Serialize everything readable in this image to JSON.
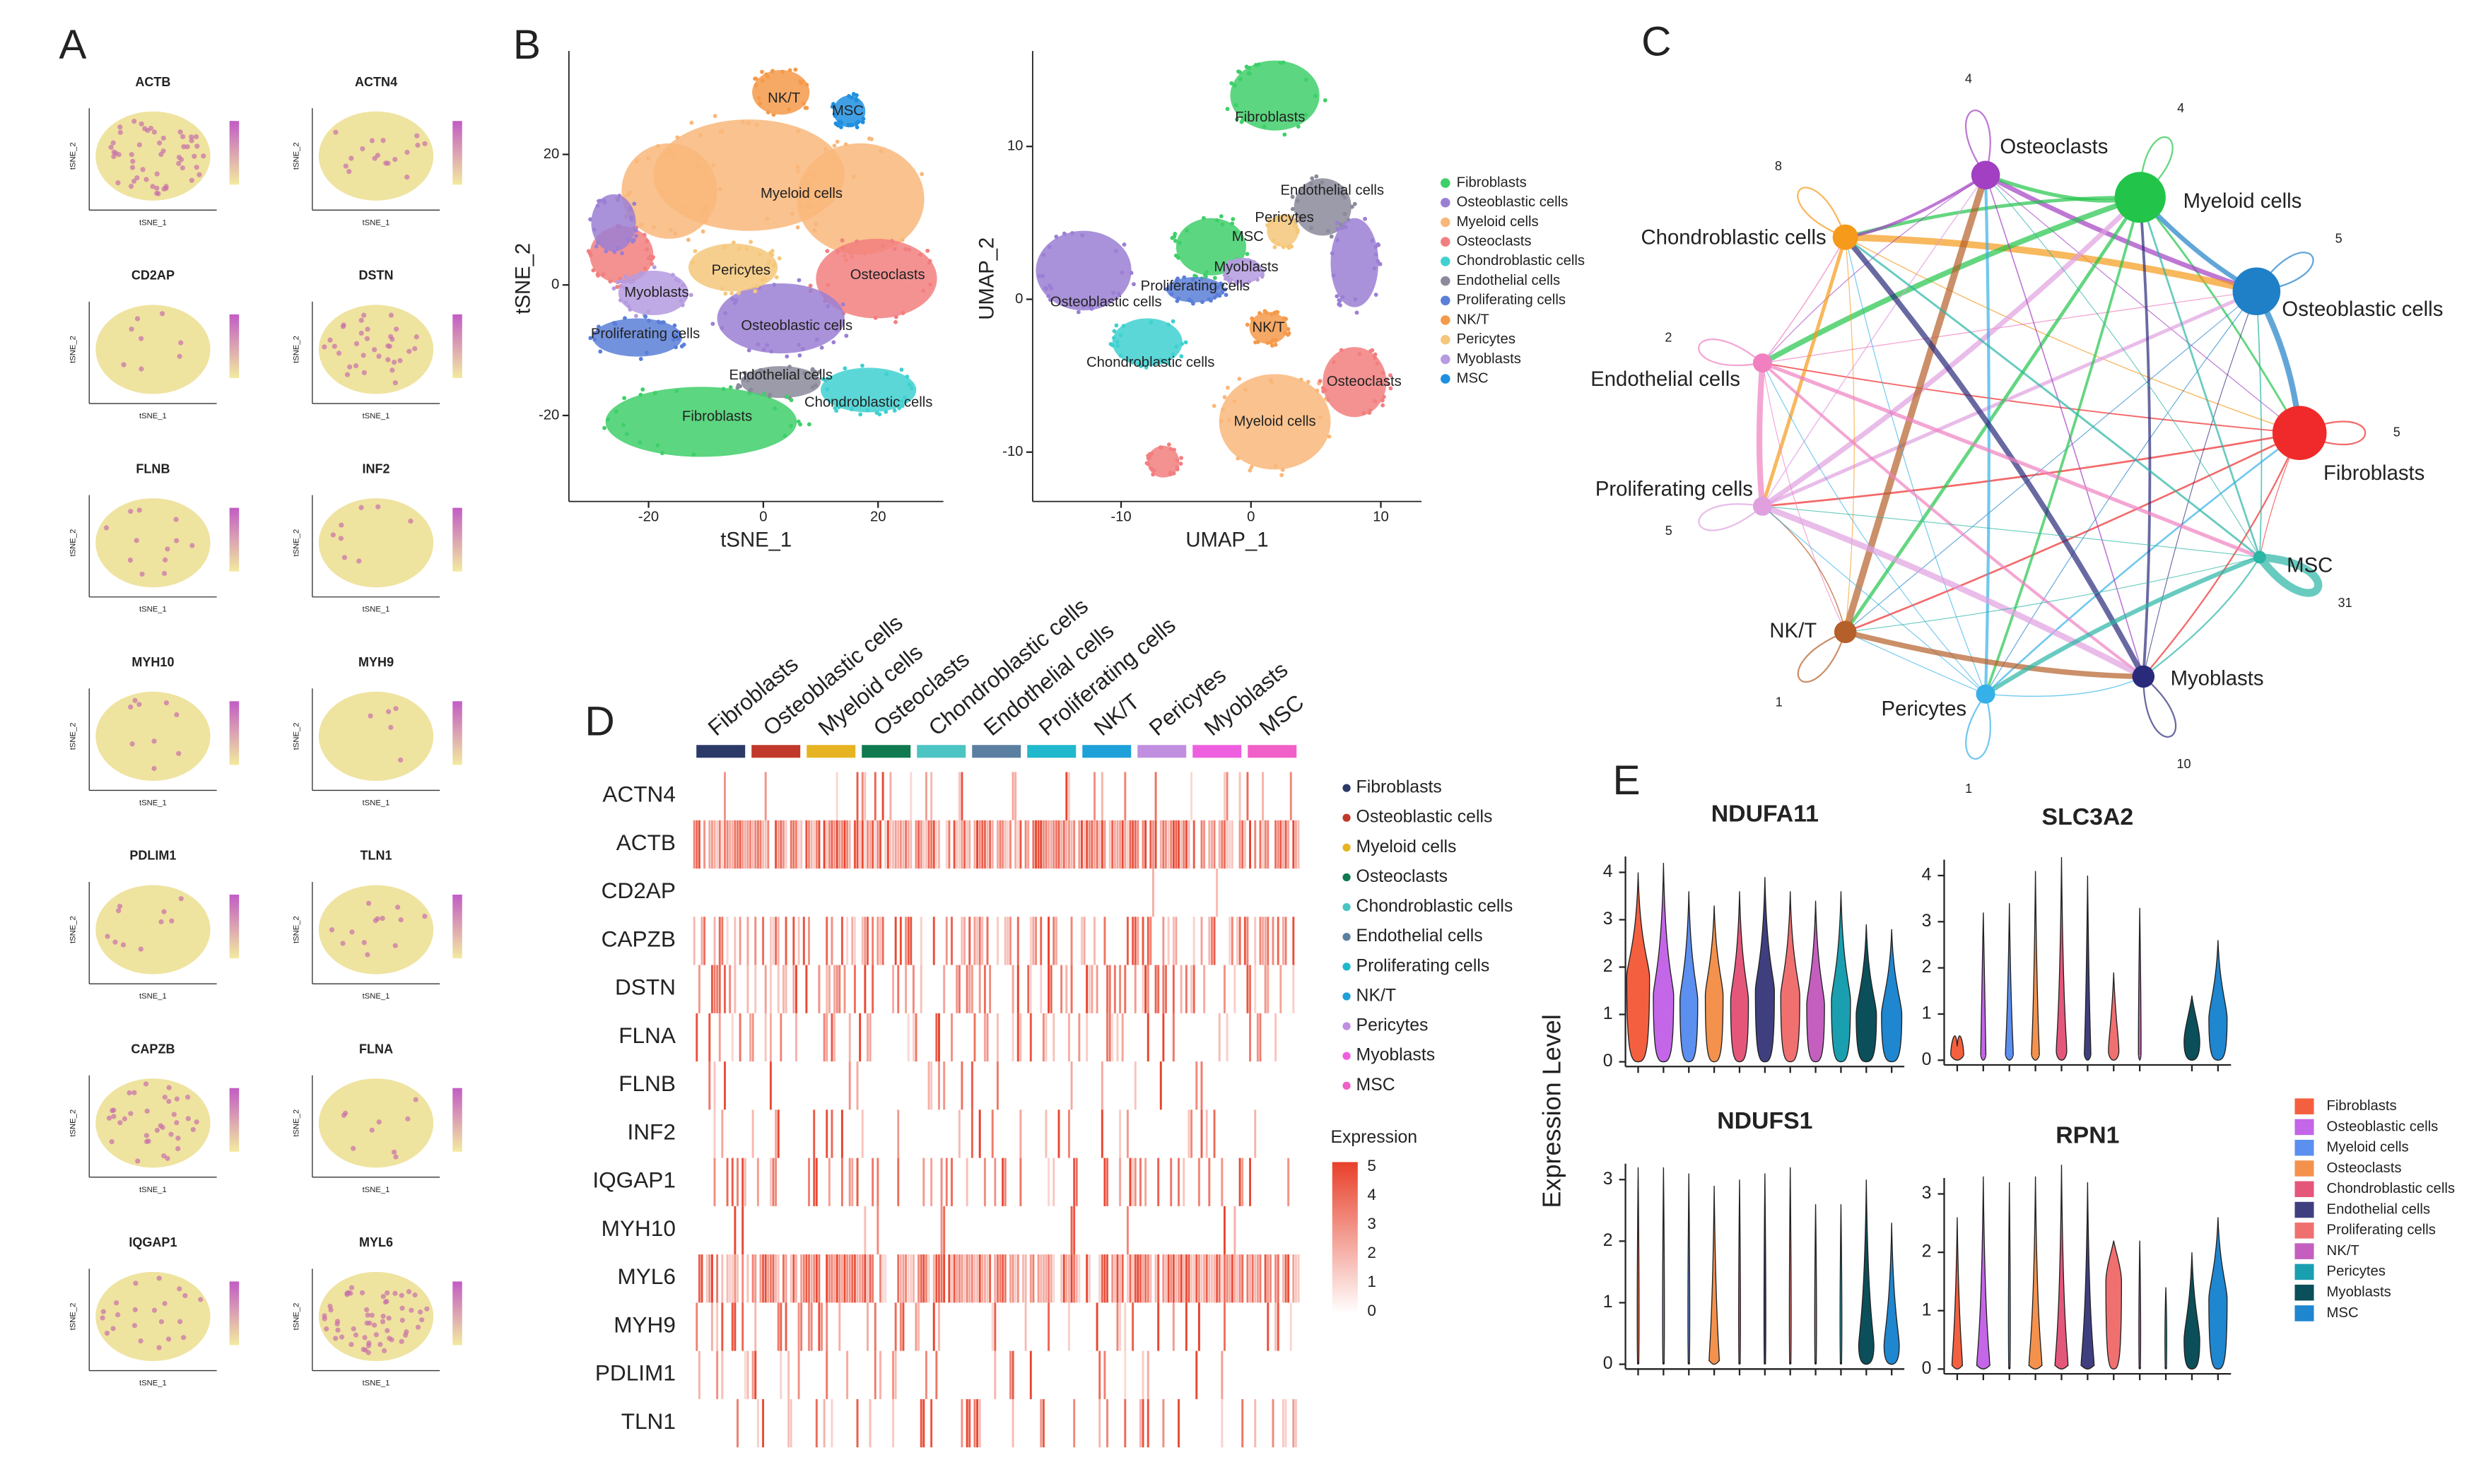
{
  "cell_types": [
    "Fibroblasts",
    "Osteoblastic cells",
    "Myeloid cells",
    "Osteoclasts",
    "Chondroblastic cells",
    "Endothelial cells",
    "Proliferating cells",
    "NK/T",
    "Pericytes",
    "Myoblasts",
    "MSC"
  ],
  "panels": {
    "A": {
      "label": "A",
      "genes": [
        "ACTB",
        "ACTN4",
        "CD2AP",
        "DSTN",
        "FLNB",
        "INF2",
        "MYH10",
        "MYH9",
        "PDLIM1",
        "TLN1",
        "CAPZB",
        "FLNA",
        "IQGAP1",
        "MYL6"
      ],
      "x_label": "tSNE_1",
      "y_label": "tSNE_2"
    },
    "B": {
      "label": "B",
      "tsne": {
        "x_label": "tSNE_1",
        "y_label": "tSNE_2",
        "xticks": [
          -20,
          0,
          20
        ],
        "yticks": [
          20,
          0,
          -20
        ]
      },
      "umap": {
        "x_label": "UMAP_1",
        "y_label": "UMAP_2",
        "xticks": [
          -10,
          0,
          10
        ],
        "yticks": [
          10,
          0,
          -10
        ]
      }
    },
    "C": {
      "label": "C",
      "loops": [
        5,
        5,
        4,
        4,
        8,
        2,
        5,
        1,
        1,
        10,
        31
      ]
    },
    "D": {
      "label": "D",
      "genes": [
        "ACTN4",
        "ACTB",
        "CD2AP",
        "CAPZB",
        "DSTN",
        "FLNA",
        "FLNB",
        "INF2",
        "IQGAP1",
        "MYH10",
        "MYL6",
        "MYH9",
        "PDLIM1",
        "TLN1"
      ],
      "legend_title": "Expression",
      "scale": [
        5,
        4,
        3,
        2,
        1,
        0
      ]
    },
    "E": {
      "label": "E",
      "y_label": "Expression Level",
      "plots": [
        {
          "title": "NDUFA11",
          "yticks": [
            0,
            1,
            2,
            3,
            4
          ]
        },
        {
          "title": "SLC3A2",
          "yticks": [
            0,
            1,
            2,
            3,
            4
          ]
        },
        {
          "title": "NDUFS1",
          "yticks": [
            0,
            1,
            2,
            3
          ]
        },
        {
          "title": "RPN1",
          "yticks": [
            0,
            1,
            2,
            3
          ]
        }
      ]
    }
  }
}
